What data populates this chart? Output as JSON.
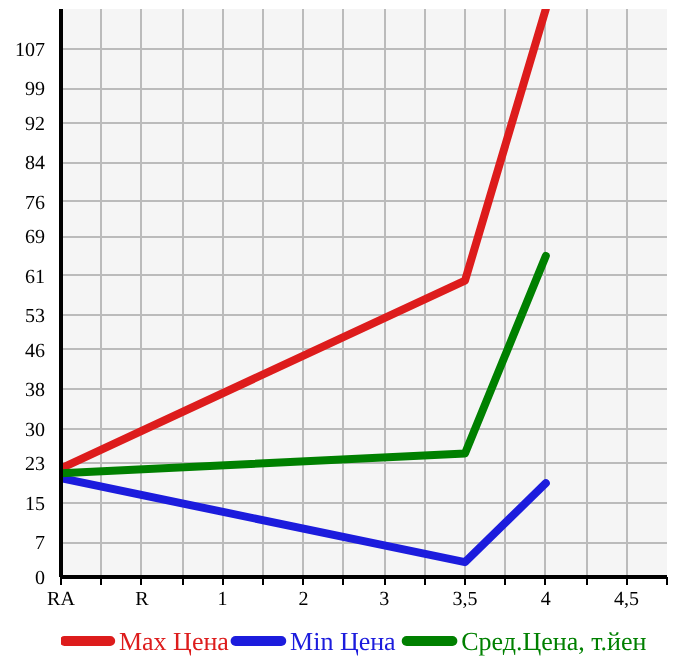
{
  "chart_data": {
    "type": "line",
    "categories": [
      "RA",
      "R",
      "1",
      "2",
      "3",
      "3,5",
      "4",
      "4,5"
    ],
    "series": [
      {
        "name": "Max Цена",
        "color": "#dd1c1c",
        "values": [
          22,
          null,
          null,
          null,
          null,
          60,
          115,
          null
        ]
      },
      {
        "name": "Min Цена",
        "color": "#1c1cdd",
        "values": [
          20,
          null,
          null,
          null,
          null,
          3,
          19,
          null
        ]
      },
      {
        "name": "Сред.Цена, т.йен",
        "color": "#008000",
        "values": [
          21,
          null,
          null,
          null,
          null,
          25,
          65,
          null
        ]
      }
    ],
    "ylim": [
      0,
      115
    ],
    "yticks": [
      0,
      7,
      15,
      23,
      30,
      38,
      46,
      53,
      61,
      69,
      76,
      84,
      92,
      99,
      107
    ],
    "grid": true,
    "legend": "bottom",
    "line_style": "solid"
  }
}
